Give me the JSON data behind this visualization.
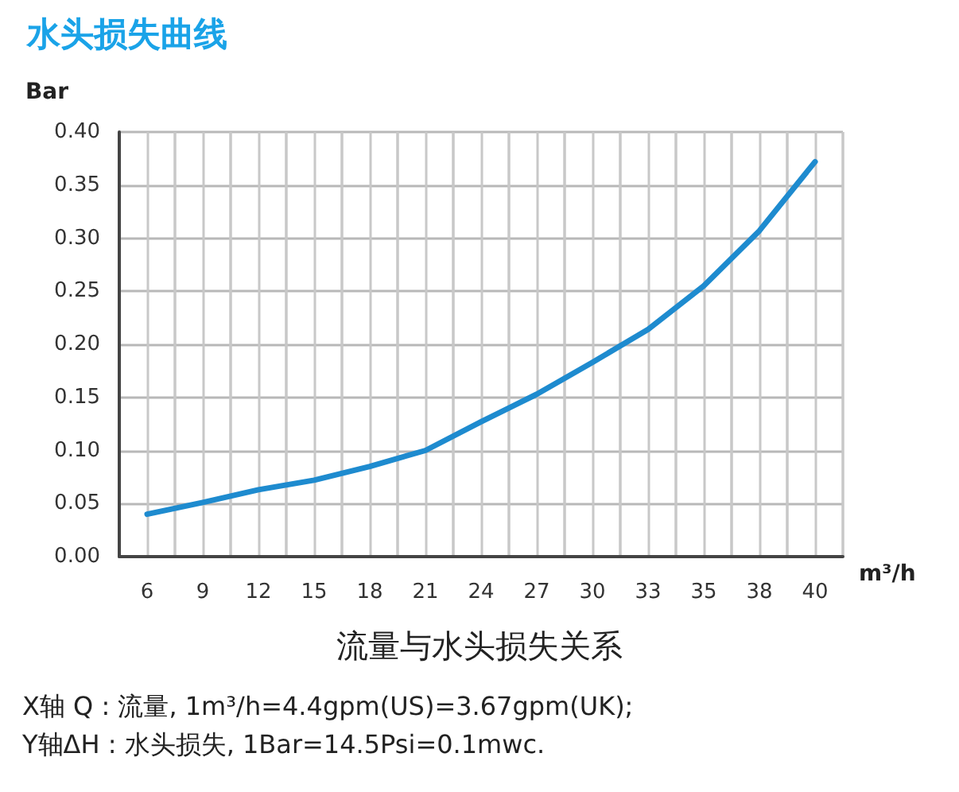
{
  "chart_data": {
    "type": "line",
    "title": "水头损失曲线",
    "ylabel": "Bar",
    "xlabel": "m³/h",
    "categories": [
      "6",
      "9",
      "12",
      "15",
      "18",
      "21",
      "24",
      "27",
      "30",
      "33",
      "35",
      "38",
      "40"
    ],
    "series": [
      {
        "color": "#1e8bcf",
        "values": [
          0.04,
          0.051,
          0.063,
          0.072,
          0.085,
          0.1,
          0.127,
          0.153,
          0.183,
          0.214,
          0.255,
          0.307,
          0.372
        ]
      }
    ],
    "ylim": [
      0,
      0.4
    ],
    "yticks": [
      {
        "value": 0,
        "label": "0.00"
      },
      0.05,
      {
        "value": 0.1,
        "label": "0.10"
      },
      0.15,
      {
        "value": 0.2,
        "label": "0.20"
      },
      0.25,
      {
        "value": 0.3,
        "label": "0.30"
      },
      0.35,
      {
        "value": 0.4,
        "label": "0.40"
      }
    ],
    "grid": true,
    "marker": "none",
    "line_style": "solid",
    "annotations": [
      "流量与水头损失关系",
      "X轴 Q : 流量, 1m³/h=4.4gpm(US)=3.67gpm(UK);",
      "Y轴ΔH : 水头损失, 1Bar=14.5Psi=0.1mwc."
    ]
  }
}
